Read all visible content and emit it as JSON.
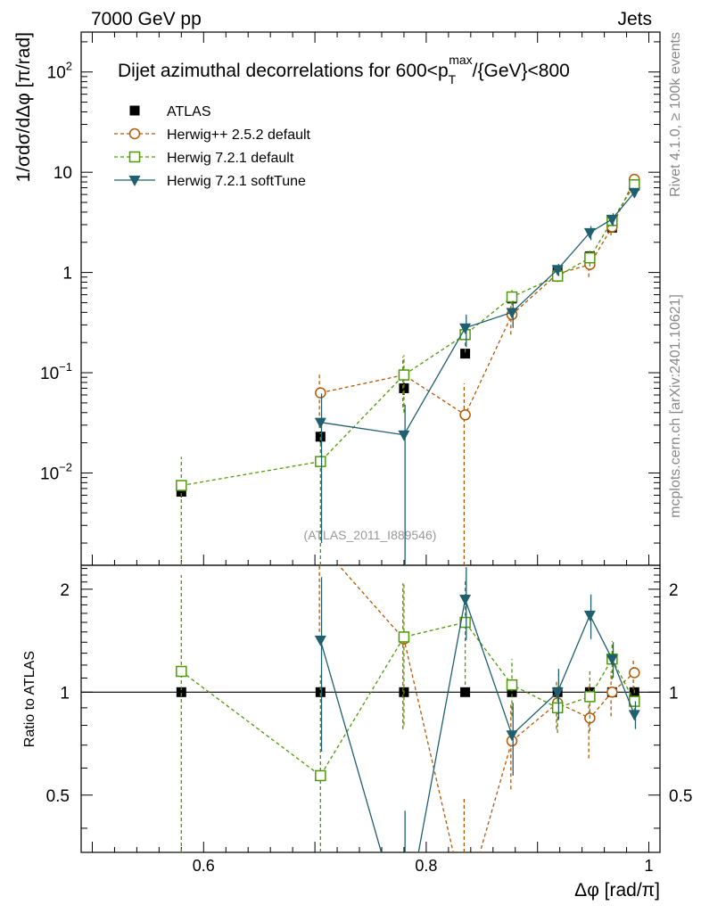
{
  "header": {
    "left": "7000 GeV pp",
    "right": "Jets",
    "side_top": "Rivet 4.1.0, ≥ 100k events",
    "side_bottom": "mcplots.cern.ch [arXiv:2401.10621]",
    "analysis_id": "(ATLAS_2011_I889546)"
  },
  "chart_data": {
    "type": "line",
    "title": "Dijet azimuthal decorrelations for 600<p_T^max/{GeV}<800",
    "title_parts": {
      "main": "Dijet azimuthal decorrelations for 600<p",
      "sub": "T",
      "sup": "max",
      "tail": "/{GeV}<800"
    },
    "xlabel": "Δφ [rad/π]",
    "ylabel": "1/σdσ/dΔφ [π/rad]",
    "ratio_ylabel": "Ratio to ATLAS",
    "x_ticks": [
      "0.6",
      "0.8",
      "1"
    ],
    "x_tick_values": [
      0.6,
      0.8,
      1.0
    ],
    "xlim": [
      0.49,
      1.01
    ],
    "main_ylim": [
      0.0012,
      250
    ],
    "main_y_scale": "log",
    "main_y_ticks": [
      {
        "value": 0.01,
        "base": "10",
        "exp": "−2"
      },
      {
        "value": 0.1,
        "base": "10",
        "exp": "−1"
      },
      {
        "value": 1,
        "base": "1",
        "exp": ""
      },
      {
        "value": 10,
        "base": "10",
        "exp": ""
      },
      {
        "value": 100,
        "base": "10",
        "exp": "2"
      }
    ],
    "ratio_ylim": [
      0.34,
      2.35
    ],
    "ratio_y_scale": "log",
    "ratio_y_ticks": [
      {
        "value": 0.5,
        "label": "0.5"
      },
      {
        "value": 1,
        "label": "1"
      },
      {
        "value": 2,
        "label": "2"
      }
    ],
    "legend_position": "top-left",
    "legend": [
      "ATLAS",
      "Herwig++ 2.5.2 default",
      "Herwig 7.2.1 default",
      "Herwig 7.2.1 softTune"
    ],
    "series": [
      {
        "name": "ATLAS",
        "style": "data",
        "marker": "square-filled",
        "color": "#000000",
        "dashed": false,
        "x": [
          0.58,
          0.705,
          0.78,
          0.835,
          0.877,
          0.918,
          0.947,
          0.967,
          0.987
        ],
        "y": [
          0.0065,
          0.023,
          0.07,
          0.155,
          0.55,
          1.05,
          1.45,
          2.8,
          7.3
        ],
        "yerr": [
          0.0008,
          0.003,
          0.01,
          0.015,
          0.05,
          0.08,
          0.1,
          0.2,
          0.5
        ],
        "ratio": [
          1,
          1,
          1,
          1,
          1,
          1,
          1,
          1,
          1
        ],
        "ratio_err": [
          0,
          0,
          0,
          0,
          0,
          0,
          0,
          0,
          0
        ]
      },
      {
        "name": "Herwig++ 2.5.2 default",
        "style": "mc",
        "marker": "circle-open",
        "color": "#b35806",
        "dashed": true,
        "x": [
          0.705,
          0.78,
          0.835,
          0.877,
          0.918,
          0.947,
          0.967,
          0.987
        ],
        "y": [
          0.063,
          0.095,
          0.038,
          0.38,
          0.97,
          1.2,
          2.85,
          8.5
        ],
        "yerr": [
          0.035,
          0.05,
          0.04,
          0.14,
          0.15,
          0.3,
          0.5,
          0.9
        ],
        "ratio": [
          2.7,
          1.43,
          0.24,
          0.72,
          0.93,
          0.84,
          1.0,
          1.14
        ],
        "ratio_err": [
          1.2,
          0.65,
          0.25,
          0.2,
          0.15,
          0.2,
          0.15,
          0.12
        ]
      },
      {
        "name": "Herwig 7.2.1 default",
        "style": "mc",
        "marker": "square-open",
        "color": "#4d9a06",
        "dashed": true,
        "x": [
          0.58,
          0.705,
          0.78,
          0.835,
          0.877,
          0.918,
          0.947,
          0.967,
          0.987
        ],
        "y": [
          0.0075,
          0.013,
          0.095,
          0.24,
          0.57,
          0.92,
          1.4,
          3.3,
          7.5
        ],
        "yerr": [
          0.007,
          0.012,
          0.055,
          0.08,
          0.1,
          0.12,
          0.25,
          0.4,
          0.7
        ],
        "ratio": [
          1.15,
          0.57,
          1.45,
          1.6,
          1.05,
          0.9,
          0.97,
          1.25,
          0.94
        ],
        "ratio_err": [
          1.05,
          0.55,
          0.65,
          0.55,
          0.2,
          0.14,
          0.2,
          0.16,
          0.1
        ]
      },
      {
        "name": "Herwig 7.2.1 softTune",
        "style": "mc",
        "marker": "triangle-down-filled",
        "color": "#1f5f6e",
        "dashed": false,
        "x": [
          0.705,
          0.78,
          0.835,
          0.877,
          0.918,
          0.947,
          0.967,
          0.987
        ],
        "y": [
          0.032,
          0.024,
          0.28,
          0.4,
          1.07,
          2.5,
          3.4,
          6.3
        ],
        "yerr": [
          0.03,
          0.024,
          0.1,
          0.12,
          0.15,
          0.4,
          0.5,
          0.6
        ],
        "ratio": [
          1.42,
          0.2,
          1.87,
          0.75,
          1.0,
          1.68,
          1.25,
          0.86
        ],
        "ratio_err": [
          0.75,
          0.25,
          0.45,
          0.18,
          0.17,
          0.25,
          0.15,
          0.08
        ]
      }
    ]
  }
}
